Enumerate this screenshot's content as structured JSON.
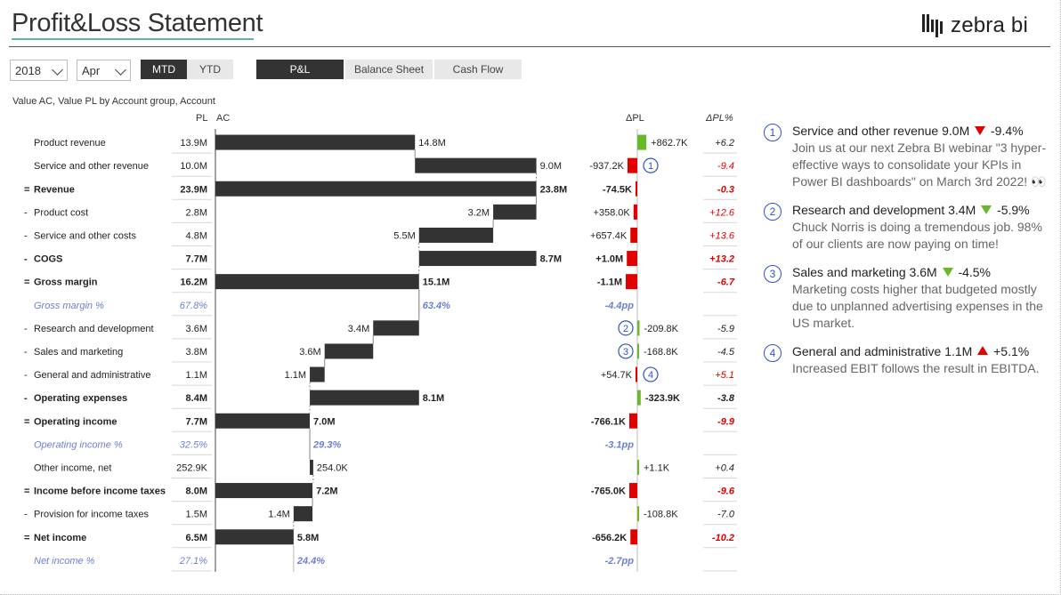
{
  "header": {
    "title": "Profit&Loss Statement",
    "logo_text": "zebra bi"
  },
  "filters": {
    "year": "2018",
    "month": "Apr"
  },
  "toggles": {
    "mtd": "MTD",
    "ytd": "YTD"
  },
  "tabs": {
    "pl": "P&L",
    "balance": "Balance Sheet",
    "cashflow": "Cash Flow"
  },
  "chart_subtitle": "Value AC, Value PL by Account group, Account",
  "columns": {
    "pl": "PL",
    "ac": "AC",
    "dpl": "ΔPL",
    "dplp": "ΔPL%"
  },
  "colors": {
    "bar": "#333333",
    "positive": "#67b92a",
    "negative": "#e00000",
    "percent": "#6b7fd4",
    "marker": "#2f52c7"
  },
  "chart_data": {
    "type": "table",
    "rows": [
      {
        "label": "Product revenue",
        "prefix": "",
        "kind": "item",
        "pl": "13.9M",
        "ac_label": "14.8M",
        "ac_start": 0,
        "ac_end": 14.8,
        "dpl_label": "+862.7K",
        "dpl_value": 862.7,
        "dplp": "+6.2",
        "dplp_color": "neutral"
      },
      {
        "label": "Service and other revenue",
        "prefix": "",
        "kind": "item",
        "pl": "10.0M",
        "ac_label": "9.0M",
        "ac_start": 14.8,
        "ac_end": 23.8,
        "dpl_label": "-937.2K",
        "dpl_value": -937.2,
        "dplp": "-9.4",
        "dplp_color": "negative",
        "marker": "1"
      },
      {
        "label": "Revenue",
        "prefix": "=",
        "kind": "total",
        "pl": "23.9M",
        "ac_label": "23.8M",
        "ac_start": 0,
        "ac_end": 23.8,
        "dpl_label": "-74.5K",
        "dpl_value": -74.5,
        "dplp": "-0.3",
        "dplp_color": "negative"
      },
      {
        "label": "Product cost",
        "prefix": "-",
        "kind": "item",
        "pl": "2.8M",
        "ac_label": "3.2M",
        "ac_start": 20.6,
        "ac_end": 23.8,
        "dpl_label": "+358.0K",
        "dpl_value": -358.0,
        "dplp": "+12.6",
        "dplp_color": "negative"
      },
      {
        "label": "Service and other costs",
        "prefix": "-",
        "kind": "item",
        "pl": "4.8M",
        "ac_label": "5.5M",
        "ac_start": 15.1,
        "ac_end": 20.6,
        "dpl_label": "+657.4K",
        "dpl_value": -657.4,
        "dplp": "+13.6",
        "dplp_color": "negative"
      },
      {
        "label": "COGS",
        "prefix": "-",
        "kind": "total",
        "pl": "7.7M",
        "ac_label": "8.7M",
        "ac_start": 15.1,
        "ac_end": 23.8,
        "dpl_label": "+1.0M",
        "dpl_value": -1000,
        "dplp": "+13.2",
        "dplp_color": "negative"
      },
      {
        "label": "Gross margin",
        "prefix": "=",
        "kind": "total",
        "pl": "16.2M",
        "ac_label": "15.1M",
        "ac_start": 0,
        "ac_end": 15.1,
        "dpl_label": "-1.1M",
        "dpl_value": -1100,
        "dplp": "-6.7",
        "dplp_color": "negative"
      },
      {
        "label": "Gross margin %",
        "prefix": "",
        "kind": "percent",
        "pl": "67.8%",
        "ac_label": "63.4%",
        "ac_start": null,
        "ac_end": 15.1,
        "dpl_label": "-4.4pp",
        "dpl_value": null,
        "dplp": "",
        "dplp_color": "neutral"
      },
      {
        "label": "Research and development",
        "prefix": "-",
        "kind": "item",
        "pl": "3.6M",
        "ac_label": "3.4M",
        "ac_start": 11.7,
        "ac_end": 15.1,
        "dpl_label": "-209.8K",
        "dpl_value": 209.8,
        "dplp": "-5.9",
        "dplp_color": "neutral",
        "marker": "2"
      },
      {
        "label": "Sales and marketing",
        "prefix": "-",
        "kind": "item",
        "pl": "3.8M",
        "ac_label": "3.6M",
        "ac_start": 8.1,
        "ac_end": 11.7,
        "dpl_label": "-168.8K",
        "dpl_value": 168.8,
        "dplp": "-4.5",
        "dplp_color": "neutral",
        "marker": "3"
      },
      {
        "label": "General and administrative",
        "prefix": "-",
        "kind": "item",
        "pl": "1.1M",
        "ac_label": "1.1M",
        "ac_start": 7.0,
        "ac_end": 8.1,
        "dpl_label": "+54.7K",
        "dpl_value": -54.7,
        "dplp": "+5.1",
        "dplp_color": "negative",
        "marker": "4"
      },
      {
        "label": "Operating expenses",
        "prefix": "-",
        "kind": "total",
        "pl": "8.4M",
        "ac_label": "8.1M",
        "ac_start": 7.0,
        "ac_end": 15.1,
        "dpl_label": "-323.9K",
        "dpl_value": 323.9,
        "dplp": "-3.8",
        "dplp_color": "neutral"
      },
      {
        "label": "Operating income",
        "prefix": "=",
        "kind": "total",
        "pl": "7.7M",
        "ac_label": "7.0M",
        "ac_start": 0,
        "ac_end": 7.0,
        "dpl_label": "-766.1K",
        "dpl_value": -766.1,
        "dplp": "-9.9",
        "dplp_color": "negative"
      },
      {
        "label": "Operating income %",
        "prefix": "",
        "kind": "percent",
        "pl": "32.5%",
        "ac_label": "29.3%",
        "ac_start": null,
        "ac_end": 7.0,
        "dpl_label": "-3.1pp",
        "dpl_value": null,
        "dplp": "",
        "dplp_color": "neutral"
      },
      {
        "label": "Other income, net",
        "prefix": "",
        "kind": "item",
        "pl": "252.9K",
        "ac_label": "254.0K",
        "ac_start": 7.0,
        "ac_end": 7.254,
        "dpl_label": "+1.1K",
        "dpl_value": 1.1,
        "dplp": "+0.4",
        "dplp_color": "neutral"
      },
      {
        "label": "Income before income taxes",
        "prefix": "=",
        "kind": "total",
        "pl": "8.0M",
        "ac_label": "7.2M",
        "ac_start": 0,
        "ac_end": 7.2,
        "dpl_label": "-765.0K",
        "dpl_value": -765.0,
        "dplp": "-9.6",
        "dplp_color": "negative"
      },
      {
        "label": "Provision for income taxes",
        "prefix": "-",
        "kind": "item",
        "pl": "1.5M",
        "ac_label": "1.4M",
        "ac_start": 5.8,
        "ac_end": 7.2,
        "dpl_label": "-108.8K",
        "dpl_value": 108.8,
        "dplp": "-7.0",
        "dplp_color": "neutral"
      },
      {
        "label": "Net income",
        "prefix": "=",
        "kind": "total",
        "pl": "6.5M",
        "ac_label": "5.8M",
        "ac_start": 0,
        "ac_end": 5.8,
        "dpl_label": "-656.2K",
        "dpl_value": -656.2,
        "dplp": "-10.2",
        "dplp_color": "negative"
      },
      {
        "label": "Net income %",
        "prefix": "",
        "kind": "percent",
        "pl": "27.1%",
        "ac_label": "24.4%",
        "ac_start": null,
        "ac_end": 5.8,
        "dpl_label": "-2.7pp",
        "dpl_value": null,
        "dplp": "",
        "dplp_color": "neutral"
      }
    ]
  },
  "notes": [
    {
      "num": "1",
      "title": "Service and other revenue",
      "value": "9.0M",
      "direction": "down",
      "color": "#e00000",
      "delta": "-9.4%",
      "text": "Join us at our next Zebra BI webinar \"3 hyper-effective ways to consolidate your KPIs in Power BI dashboards\" on March 3rd 2022! 👀"
    },
    {
      "num": "2",
      "title": "Research and development",
      "value": "3.4M",
      "direction": "down",
      "color": "#67b92a",
      "delta": "-5.9%",
      "text": "Chuck Norris is doing a tremendous job. 98% of our clients are now paying on time!"
    },
    {
      "num": "3",
      "title": "Sales and marketing",
      "value": "3.6M",
      "direction": "down",
      "color": "#67b92a",
      "delta": "-4.5%",
      "text": "Marketing costs higher that budgeted mostly due to unplanned advertising expenses in the US market."
    },
    {
      "num": "4",
      "title": "General and administrative",
      "value": "1.1M",
      "direction": "up",
      "color": "#e00000",
      "delta": "+5.1%",
      "text": "Increased EBIT follows the result in EBITDA."
    }
  ]
}
